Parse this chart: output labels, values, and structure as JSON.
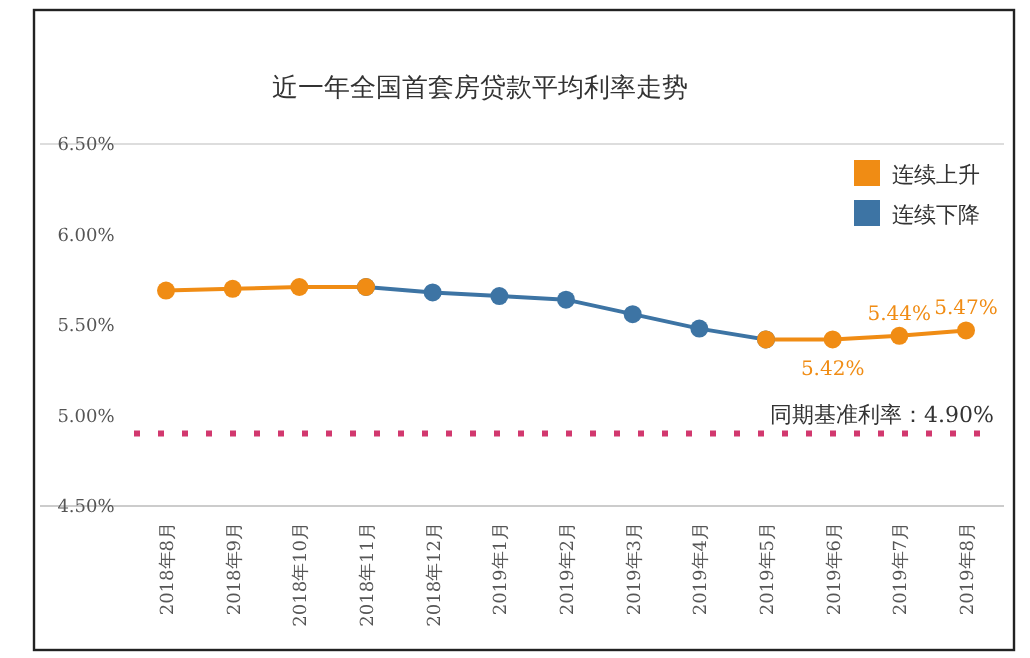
{
  "chart_data": {
    "type": "line",
    "title": "近一年全国首套房贷款平均利率走势",
    "categories": [
      "2018年8月",
      "2018年9月",
      "2018年10月",
      "2018年11月",
      "2018年12月",
      "2019年1月",
      "2019年2月",
      "2019年3月",
      "2019年4月",
      "2019年5月",
      "2019年6月",
      "2019年7月",
      "2019年8月"
    ],
    "series": [
      {
        "name": "连续下降",
        "color": "#3d74a4",
        "values": [
          null,
          null,
          null,
          5.71,
          5.68,
          5.66,
          5.64,
          5.56,
          5.48,
          5.42,
          null,
          null,
          null
        ]
      },
      {
        "name": "连续上升",
        "color": "#f08c14",
        "values": [
          5.69,
          5.7,
          5.71,
          5.71,
          null,
          null,
          null,
          null,
          null,
          5.42,
          5.42,
          5.44,
          5.47
        ],
        "value_labels": [
          null,
          null,
          null,
          null,
          null,
          null,
          null,
          null,
          null,
          null,
          "5.42%",
          "5.44%",
          "5.47%"
        ]
      }
    ],
    "ylim": [
      4.5,
      6.5
    ],
    "yticks": [
      {
        "value": 4.5,
        "label": "4.50%"
      },
      {
        "value": 5.0,
        "label": "5.00%"
      },
      {
        "value": 5.5,
        "label": "5.50%"
      },
      {
        "value": 6.0,
        "label": "6.00%"
      },
      {
        "value": 6.5,
        "label": "6.50%"
      }
    ],
    "ref_lines": [
      {
        "axis": "y",
        "value": 4.9,
        "label": "同期基准利率：4.90%",
        "color": "#d2386e",
        "line_style": "dotted"
      }
    ],
    "legend": "top right",
    "marker": "circle",
    "line_style": "solid",
    "grid": false
  }
}
